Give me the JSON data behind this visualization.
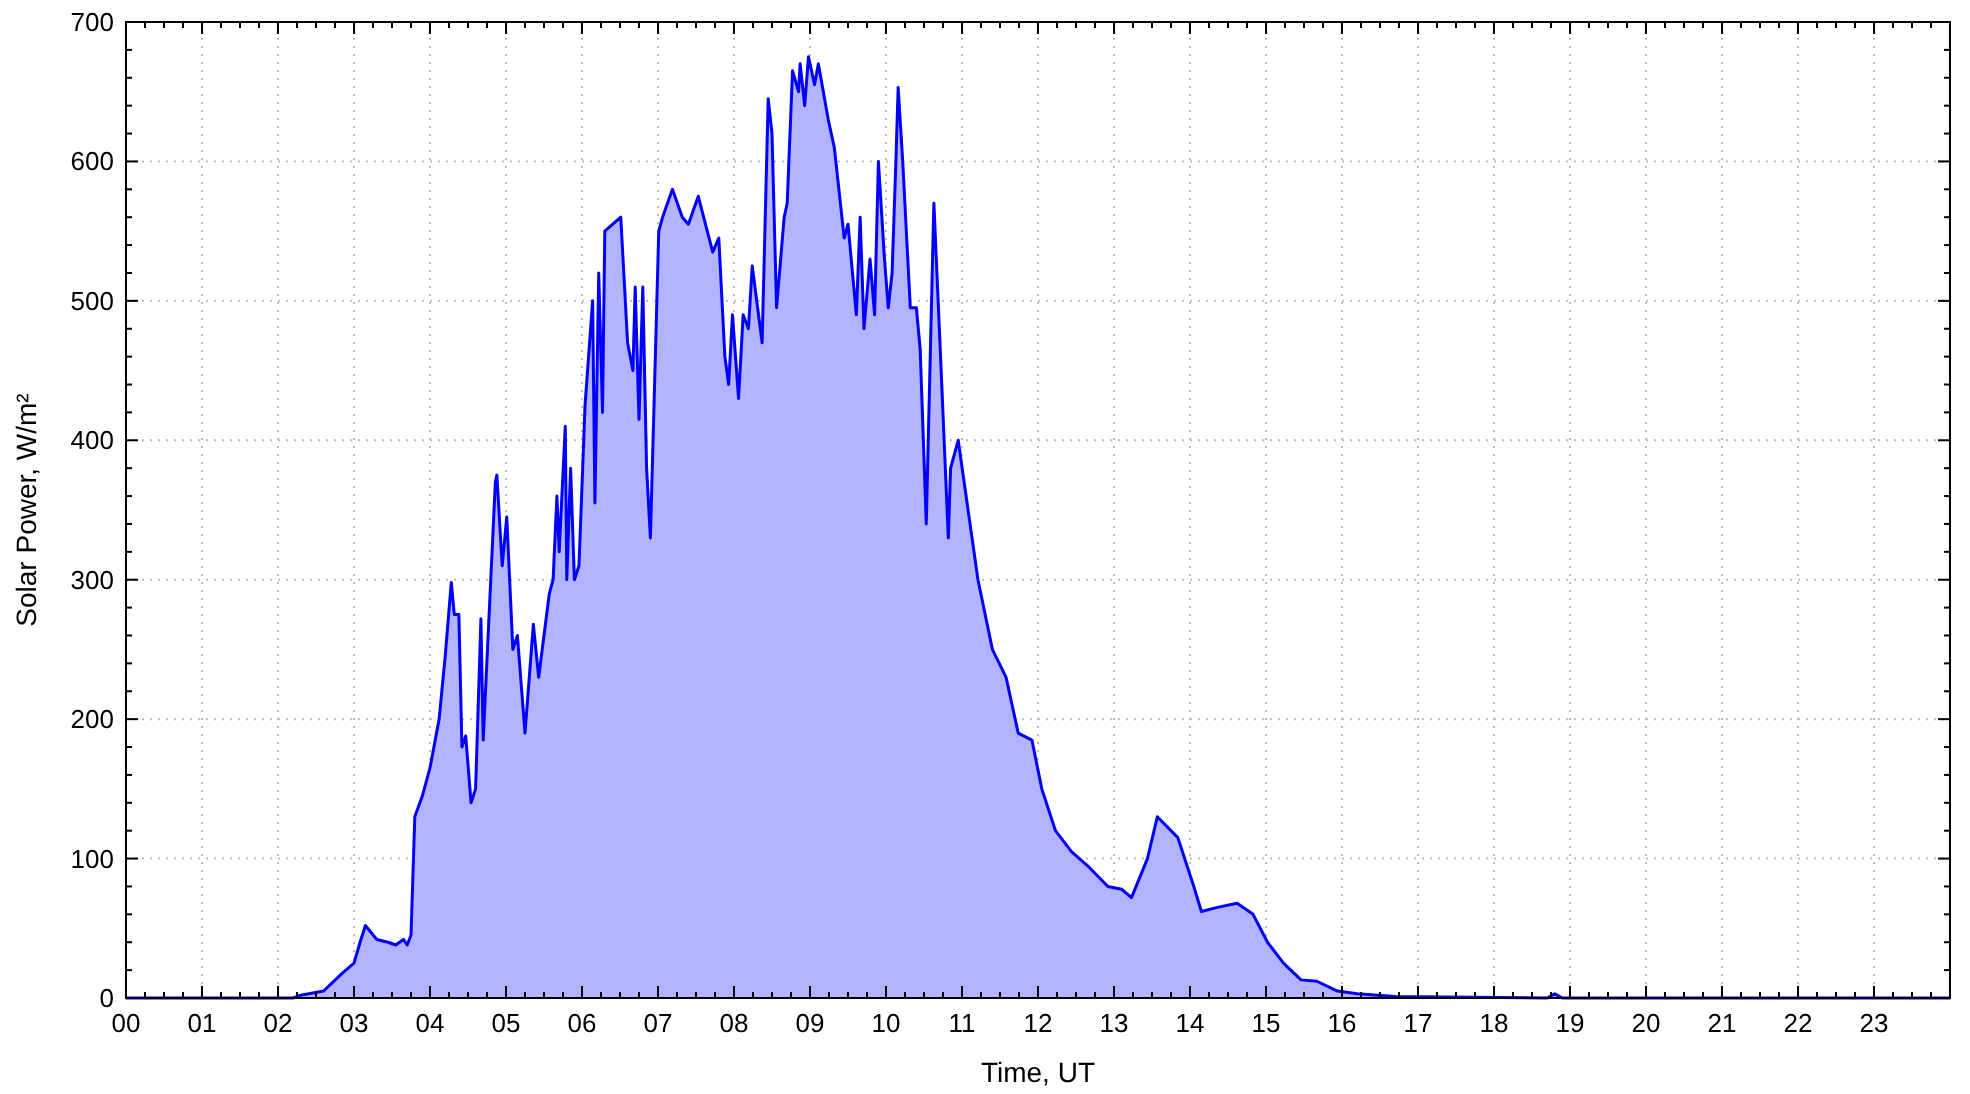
{
  "chart_data": {
    "type": "area",
    "xlabel": "Time, UT",
    "ylabel": "Solar Power, W/m²",
    "x": [
      0,
      2.2,
      2.3,
      2.6,
      2.85,
      3.0,
      3.08,
      3.15,
      3.3,
      3.45,
      3.55,
      3.65,
      3.7,
      3.75,
      3.8,
      3.9,
      4.0,
      4.12,
      4.2,
      4.28,
      4.32,
      4.38,
      4.42,
      4.47,
      4.54,
      4.6,
      4.67,
      4.7,
      4.86,
      4.88,
      4.95,
      5.01,
      5.09,
      5.15,
      5.25,
      5.36,
      5.43,
      5.57,
      5.62,
      5.67,
      5.7,
      5.78,
      5.8,
      5.85,
      5.9,
      5.96,
      6.04,
      6.14,
      6.17,
      6.22,
      6.27,
      6.3,
      6.51,
      6.6,
      6.67,
      6.7,
      6.75,
      6.8,
      6.85,
      6.9,
      7.01,
      7.06,
      7.19,
      7.32,
      7.4,
      7.53,
      7.72,
      7.8,
      7.88,
      7.93,
      7.98,
      8.06,
      8.12,
      8.19,
      8.24,
      8.37,
      8.45,
      8.5,
      8.56,
      8.66,
      8.7,
      8.77,
      8.85,
      8.87,
      8.93,
      8.98,
      9.06,
      9.11,
      9.24,
      9.32,
      9.45,
      9.5,
      9.61,
      9.66,
      9.71,
      9.79,
      9.85,
      9.9,
      9.98,
      10.03,
      10.08,
      10.13,
      10.16,
      10.22,
      10.32,
      10.4,
      10.45,
      10.53,
      10.63,
      10.71,
      10.82,
      10.85,
      10.95,
      11.08,
      11.21,
      11.4,
      11.58,
      11.74,
      11.92,
      12.05,
      12.23,
      12.44,
      12.65,
      12.92,
      13.1,
      13.23,
      13.44,
      13.57,
      13.84,
      14.05,
      14.15,
      14.36,
      14.62,
      14.83,
      15.02,
      15.23,
      15.46,
      15.67,
      15.94,
      16.2,
      16.7,
      18.7,
      18.8,
      18.9,
      24
    ],
    "series": [
      {
        "color": "#0000ff",
        "values": [
          0,
          0,
          2,
          5,
          18,
          25,
          40,
          52,
          42,
          40,
          38,
          42,
          38,
          45,
          130,
          145,
          165,
          200,
          245,
          298,
          275,
          275,
          180,
          188,
          140,
          150,
          272,
          185,
          370,
          375,
          310,
          345,
          250,
          260,
          190,
          268,
          230,
          290,
          300,
          360,
          320,
          410,
          300,
          380,
          300,
          310,
          425,
          500,
          355,
          520,
          420,
          550,
          560,
          470,
          450,
          510,
          415,
          510,
          380,
          330,
          550,
          560,
          580,
          560,
          555,
          575,
          535,
          545,
          460,
          440,
          490,
          430,
          490,
          480,
          525,
          470,
          645,
          620,
          495,
          560,
          570,
          665,
          650,
          670,
          640,
          675,
          655,
          670,
          630,
          610,
          545,
          555,
          490,
          560,
          480,
          530,
          490,
          600,
          530,
          495,
          520,
          600,
          653,
          600,
          495,
          495,
          465,
          340,
          570,
          470,
          330,
          380,
          400,
          350,
          300,
          250,
          230,
          190,
          185,
          150,
          120,
          105,
          95,
          80,
          78,
          72,
          100,
          130,
          115,
          80,
          62,
          65,
          68,
          60,
          40,
          25,
          13,
          12,
          5,
          3,
          1,
          0,
          3,
          0,
          0
        ]
      }
    ],
    "xlim": [
      0,
      24
    ],
    "xticks": [
      {
        "value": 0,
        "label": "00"
      },
      {
        "value": 1,
        "label": "01"
      },
      {
        "value": 2,
        "label": "02"
      },
      {
        "value": 3,
        "label": "03"
      },
      {
        "value": 4,
        "label": "04"
      },
      {
        "value": 5,
        "label": "05"
      },
      {
        "value": 6,
        "label": "06"
      },
      {
        "value": 7,
        "label": "07"
      },
      {
        "value": 8,
        "label": "08"
      },
      {
        "value": 9,
        "label": "09"
      },
      10,
      11,
      12,
      13,
      14,
      15,
      16,
      17,
      18,
      19,
      20,
      21,
      22,
      23
    ],
    "ylim": [
      0,
      700
    ],
    "yticks": [
      0,
      100,
      200,
      300,
      400,
      500,
      600,
      700
    ],
    "grid": true
  }
}
